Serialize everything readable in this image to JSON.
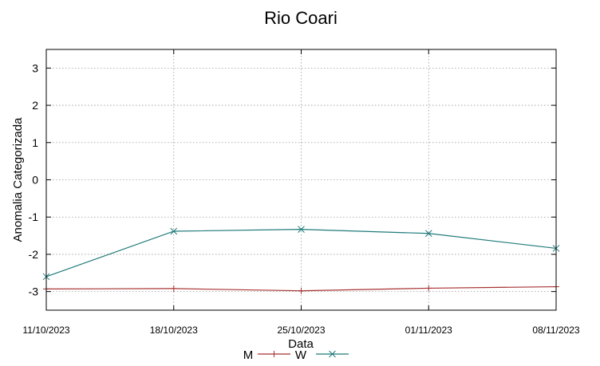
{
  "chart_data": {
    "type": "line",
    "title": "Rio Coari",
    "xlabel": "Data",
    "ylabel": "Anomalia Categorizada",
    "categories": [
      "11/10/2023",
      "18/10/2023",
      "25/10/2023",
      "01/11/2023",
      "08/11/2023"
    ],
    "ylim": [
      -3.5,
      3.5
    ],
    "yticks": [
      -3,
      -2,
      -1,
      0,
      1,
      2,
      3
    ],
    "grid": true,
    "legend_position": "bottom-center",
    "series": [
      {
        "name": "M",
        "values": [
          -2.93,
          -2.92,
          -2.98,
          -2.91,
          -2.87
        ],
        "color": "#a83232",
        "marker": "plus"
      },
      {
        "name": "W",
        "values": [
          -2.6,
          -1.38,
          -1.33,
          -1.44,
          -1.84
        ],
        "color": "#1f7a7a",
        "marker": "cross"
      }
    ]
  }
}
